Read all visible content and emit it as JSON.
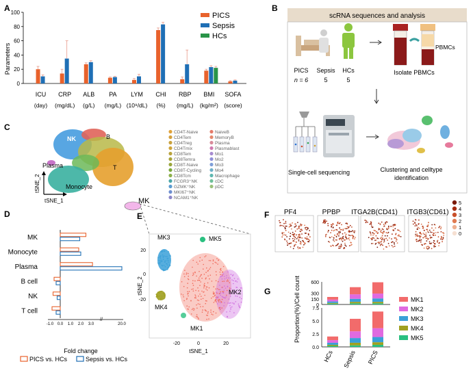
{
  "panels": {
    "A": "A",
    "B": "B",
    "C": "C",
    "D": "D",
    "E": "E",
    "F": "F",
    "G": "G"
  },
  "colors": {
    "pics": "#e8622c",
    "sepsis": "#1f6fb5",
    "hcs": "#2a9448",
    "err": "#e89a8a"
  },
  "chart_data": [
    {
      "id": "A",
      "type": "bar",
      "ylabel": "Parameters",
      "ylim": [
        0,
        100
      ],
      "yticks": [
        0,
        20,
        40,
        60,
        80,
        100
      ],
      "categories": [
        "ICU",
        "CRP",
        "ALB",
        "PA",
        "LYM",
        "CHI",
        "RBP",
        "BMI",
        "SOFA"
      ],
      "units": [
        "(day)",
        "(mg/dL)",
        "(g/L)",
        "(mg/L)",
        "(10⁹/dL)",
        "(%)",
        "(mg/L)",
        "(kg/m²)",
        "(score)"
      ],
      "legend": [
        "PICS",
        "Sepsis",
        "HCs"
      ],
      "series": [
        {
          "name": "PICS",
          "values": [
            20,
            14,
            27,
            8,
            5,
            75,
            6,
            18,
            3
          ],
          "errors": [
            4,
            6,
            2,
            1,
            2,
            3,
            3,
            2,
            1
          ]
        },
        {
          "name": "Sepsis",
          "values": [
            10,
            35,
            30,
            9,
            10,
            83,
            27,
            23,
            4
          ],
          "errors": [
            2,
            25,
            2,
            1,
            3,
            3,
            20,
            2,
            1
          ]
        },
        {
          "name": "HCs",
          "values": [
            null,
            null,
            null,
            null,
            null,
            null,
            null,
            22,
            null
          ],
          "errors": [
            null,
            null,
            null,
            null,
            null,
            null,
            null,
            2,
            null
          ]
        }
      ]
    },
    {
      "id": "D",
      "type": "bar",
      "orientation": "horizontal",
      "xlabel": "Fold change",
      "categories": [
        "MK",
        "Monocyte",
        "Plasma",
        "B cell",
        "NK",
        "T cell"
      ],
      "xtick_labels": [
        "-1.0",
        "0.0",
        "1.0",
        "2.0",
        "3.0",
        "20.0"
      ],
      "series": [
        {
          "name": "PICS vs. HCs",
          "values": [
            2.5,
            1.8,
            3.8,
            -0.6,
            -0.7,
            -0.8
          ]
        },
        {
          "name": "Sepsis vs. HCs",
          "values": [
            1.9,
            2.0,
            20.0,
            -0.4,
            -0.3,
            -0.4
          ]
        }
      ]
    },
    {
      "id": "G",
      "type": "bar",
      "stacked": true,
      "ylabel": "Proportion(%)/Cell count",
      "categories": [
        "HCs",
        "Sepsis",
        "PICS"
      ],
      "top_yticks": [
        "0",
        "150",
        "300",
        "600"
      ],
      "bottom_yticks": [
        "0.0",
        "2.5",
        "5.0",
        "7.5"
      ],
      "legend": [
        "MK1",
        "MK2",
        "MK3",
        "MK4",
        "MK5"
      ],
      "counts": [
        {
          "MK1": 70,
          "MK2": 50,
          "MK3": 40,
          "MK4": 20,
          "MK5": 20
        },
        {
          "MK1": 190,
          "MK2": 120,
          "MK3": 80,
          "MK4": 40,
          "MK5": 30
        },
        {
          "MK1": 300,
          "MK2": 130,
          "MK3": 90,
          "MK4": 40,
          "MK5": 30
        }
      ],
      "proportions": [
        {
          "MK1": 0.7,
          "MK2": 0.5,
          "MK3": 0.4,
          "MK4": 0.2,
          "MK5": 0.2
        },
        {
          "MK1": 2.4,
          "MK2": 1.3,
          "MK3": 0.9,
          "MK4": 0.5,
          "MK5": 0.3
        },
        {
          "MK1": 3.2,
          "MK2": 1.7,
          "MK3": 1.0,
          "MK4": 0.5,
          "MK5": 0.4
        }
      ]
    }
  ],
  "b": {
    "title": "scRNA sequences and analysis",
    "groups": [
      "PICS",
      "Sepsis",
      "HCs"
    ],
    "n_label": "n = 6",
    "n_values": [
      "5",
      "5"
    ],
    "pbmc_label": "PBMCs",
    "isolate_label": "Isolate PBMCs",
    "seq_label": "Single-cell sequencing",
    "cluster_label": "Clustering and celltype",
    "cluster_label2": "identification"
  },
  "c": {
    "cluster_labels": [
      "NK",
      "B",
      "Plasma",
      "T",
      "Monocyte"
    ],
    "mk_label": "MK",
    "axis_x": "tSNE_1",
    "axis_y": "tSNE_2",
    "legend_left": [
      "CD4T-Naive",
      "CD4Tem",
      "CD4Treg",
      "CD4Tmix",
      "CD8Tem",
      "CD8Temra",
      "CD8T-Naive",
      "CD8T-Cycling",
      "CD8Tcm",
      "FCGR3⁺NK",
      "GZMK⁺NK",
      "MKI67⁺NK",
      "NCAM1⁺NK"
    ],
    "legend_right": [
      "NaiveB",
      "MemoryB",
      "Plasma",
      "Plasmablast",
      "Mo1",
      "Mo2",
      "Mo3",
      "Mo4",
      "Macrophage",
      "cDC",
      "pDC"
    ],
    "legend_left_colors": [
      "#e0a23a",
      "#d4a03c",
      "#c9a23e",
      "#cfa43a",
      "#b9a33d",
      "#a7a33a",
      "#9aa63c",
      "#7aa83c",
      "#8db04a",
      "#4aa6a8",
      "#5a9bd0",
      "#6e8fd0",
      "#8b86c8"
    ],
    "legend_right_colors": [
      "#e57b6a",
      "#e5896e",
      "#d88a9a",
      "#d07ab0",
      "#a78bd0",
      "#8f8fd8",
      "#7f9fd8",
      "#6fb0c8",
      "#5fb8b0",
      "#6fc09a",
      "#9ac07a"
    ]
  },
  "d": {
    "legend": [
      "PICS vs. HCs",
      "Sepsis vs. HCs"
    ]
  },
  "e": {
    "labels": [
      "MK3",
      "MK5",
      "MK2",
      "MK4",
      "MK1"
    ],
    "axis_x": "tSNE_1",
    "axis_y": "tSNE_2",
    "xticks": [
      "-20",
      "0",
      "20"
    ],
    "yticks": [
      "20",
      "0",
      "-20"
    ]
  },
  "f": {
    "genes": [
      "PF4",
      "PPBP",
      "ITGA2B(CD41)",
      "ITGB3(CD61)"
    ],
    "scale": [
      "5",
      "4",
      "3",
      "2",
      "1",
      "0"
    ],
    "scale_colors": [
      "#7a1a0a",
      "#a62c12",
      "#c9502a",
      "#e07a50",
      "#eeb090",
      "#f6e0d2"
    ]
  }
}
